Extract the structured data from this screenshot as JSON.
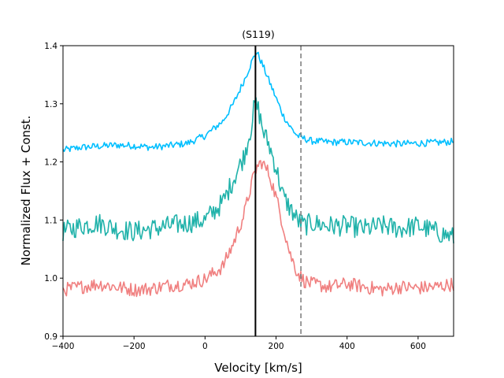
{
  "chart_data": {
    "type": "line",
    "title": "(S119)",
    "xlabel": "Velocity [km/s]",
    "ylabel": "Normalized Flux + Const.",
    "xlim": [
      -400,
      700
    ],
    "ylim": [
      0.9,
      1.4
    ],
    "xticks": [
      -400,
      -200,
      0,
      200,
      400,
      600
    ],
    "xtick_labels": [
      "−400",
      "−200",
      "0",
      "200",
      "400",
      "600"
    ],
    "yticks": [
      0.9,
      1.0,
      1.1,
      1.2,
      1.3,
      1.4
    ],
    "ytick_labels": [
      "0.9",
      "1.0",
      "1.1",
      "1.2",
      "1.3",
      "1.4"
    ],
    "grid": false,
    "series": [
      {
        "name": "blue spectrum",
        "color": "#00BFFF",
        "x": [
          -400,
          -350,
          -300,
          -250,
          -200,
          -150,
          -100,
          -50,
          0,
          50,
          80,
          110,
          130,
          145,
          160,
          180,
          200,
          220,
          240,
          260,
          280,
          300,
          350,
          400,
          450,
          500,
          550,
          600,
          650,
          700
        ],
        "values": [
          1.22,
          1.225,
          1.227,
          1.229,
          1.228,
          1.225,
          1.228,
          1.232,
          1.245,
          1.27,
          1.3,
          1.34,
          1.37,
          1.39,
          1.37,
          1.34,
          1.31,
          1.28,
          1.26,
          1.245,
          1.24,
          1.236,
          1.234,
          1.234,
          1.233,
          1.232,
          1.231,
          1.232,
          1.233,
          1.235
        ]
      },
      {
        "name": "teal spectrum",
        "color": "#20B2AA",
        "x": [
          -400,
          -350,
          -300,
          -250,
          -200,
          -150,
          -100,
          -50,
          0,
          50,
          80,
          110,
          130,
          140,
          150,
          165,
          180,
          200,
          220,
          240,
          260,
          280,
          300,
          350,
          400,
          450,
          500,
          550,
          600,
          650,
          700
        ],
        "values": [
          1.08,
          1.09,
          1.095,
          1.085,
          1.08,
          1.085,
          1.09,
          1.095,
          1.1,
          1.13,
          1.17,
          1.21,
          1.26,
          1.3,
          1.29,
          1.25,
          1.23,
          1.19,
          1.14,
          1.12,
          1.1,
          1.09,
          1.095,
          1.09,
          1.09,
          1.085,
          1.09,
          1.085,
          1.09,
          1.08,
          1.07
        ]
      },
      {
        "name": "red spectrum",
        "color": "#F08080",
        "x": [
          -400,
          -350,
          -300,
          -250,
          -200,
          -150,
          -100,
          -50,
          0,
          50,
          80,
          110,
          130,
          145,
          160,
          180,
          200,
          220,
          240,
          260,
          280,
          300,
          350,
          400,
          450,
          500,
          550,
          600,
          650,
          700
        ],
        "values": [
          0.98,
          0.985,
          0.99,
          0.985,
          0.98,
          0.982,
          0.988,
          0.99,
          0.998,
          1.02,
          1.06,
          1.11,
          1.16,
          1.19,
          1.2,
          1.18,
          1.14,
          1.09,
          1.04,
          1.01,
          0.995,
          0.99,
          0.985,
          0.99,
          0.985,
          0.98,
          0.985,
          0.983,
          0.985,
          0.99
        ]
      }
    ],
    "vlines": [
      {
        "x": 142,
        "color": "#000000",
        "style": "solid"
      },
      {
        "x": 270,
        "color": "#808080",
        "style": "dashed"
      }
    ]
  }
}
